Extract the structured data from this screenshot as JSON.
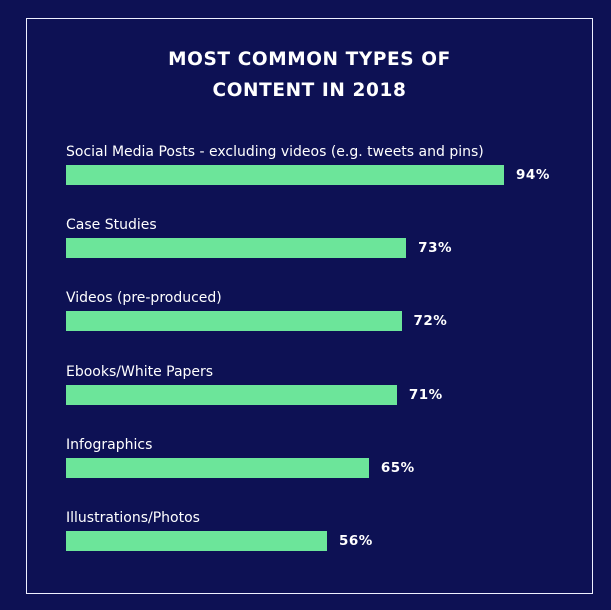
{
  "chart_data": {
    "type": "bar",
    "orientation": "horizontal",
    "title": "MOST COMMON TYPES OF CONTENT IN 2018",
    "title_lines": [
      "MOST COMMON TYPES OF",
      "CONTENT IN 2018"
    ],
    "categories": [
      "Social Media Posts - excluding videos (e.g. tweets and pins)",
      "Case Studies",
      "Videos (pre-produced)",
      "Ebooks/White Papers",
      "Infographics",
      "Illustrations/Photos"
    ],
    "values": [
      94,
      73,
      72,
      71,
      65,
      56
    ],
    "value_labels": [
      "94%",
      "73%",
      "72%",
      "71%",
      "65%",
      "56%"
    ],
    "unit": "%",
    "xlim": [
      0,
      100
    ],
    "grid": false,
    "legend": "none"
  },
  "colors": {
    "background": "#0d1154",
    "bar": "#6ce59a",
    "text": "#ffffff",
    "frame": "#eef0ff"
  }
}
